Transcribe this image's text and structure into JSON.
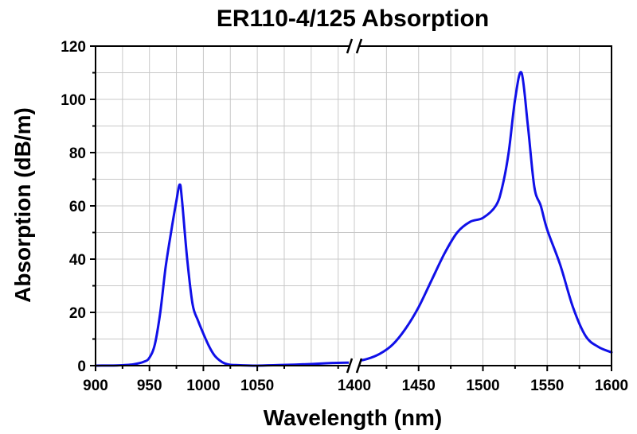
{
  "chart_data": {
    "type": "line",
    "title": "ER110-4/125 Absorption",
    "xlabel": "Wavelength (nm)",
    "ylabel": "Absorption (dB/m)",
    "ylim": [
      0,
      120
    ],
    "yticks": [
      0,
      20,
      40,
      60,
      80,
      100,
      120
    ],
    "grid": true,
    "axis_break": {
      "from": 1140,
      "to": 1400,
      "marker": "//"
    },
    "segments": [
      {
        "name": "left",
        "xlim": [
          900,
          1140
        ],
        "xticks": [
          900,
          950,
          1000,
          1050
        ]
      },
      {
        "name": "right",
        "xlim": [
          1400,
          1600
        ],
        "xticks": [
          1400,
          1450,
          1500,
          1550,
          1600
        ]
      }
    ],
    "series": [
      {
        "name": "ER110-4/125",
        "color": "#1010e8",
        "segments": [
          {
            "x": [
              900,
              920,
              935,
              945,
              950,
              955,
              960,
              965,
              970,
              975,
              978,
              980,
              985,
              990,
              995,
              1000,
              1005,
              1010,
              1015,
              1020,
              1025,
              1030,
              1040,
              1050,
              1070,
              1100,
              1120,
              1140
            ],
            "y": [
              0,
              0.1,
              0.5,
              1.5,
              3,
              8,
              20,
              37,
              50,
              62,
              68,
              63,
              40,
              23,
              17,
              12,
              7.5,
              4,
              2,
              0.8,
              0.3,
              0.2,
              0.1,
              0,
              0.2,
              0.6,
              1.0,
              1.2
            ]
          },
          {
            "x": [
              1400,
              1410,
              1420,
              1430,
              1440,
              1450,
              1460,
              1470,
              1480,
              1490,
              1500,
              1510,
              1515,
              1520,
              1525,
              1530,
              1535,
              1540,
              1545,
              1550,
              1560,
              1570,
              1580,
              1590,
              1600
            ],
            "y": [
              1.5,
              2.5,
              4.5,
              8,
              14,
              22,
              32,
              42,
              50,
              54,
              55.5,
              60,
              67,
              80,
              100,
              110,
              90,
              67,
              60,
              51,
              38,
              22,
              11,
              7,
              5
            ]
          }
        ]
      }
    ]
  }
}
